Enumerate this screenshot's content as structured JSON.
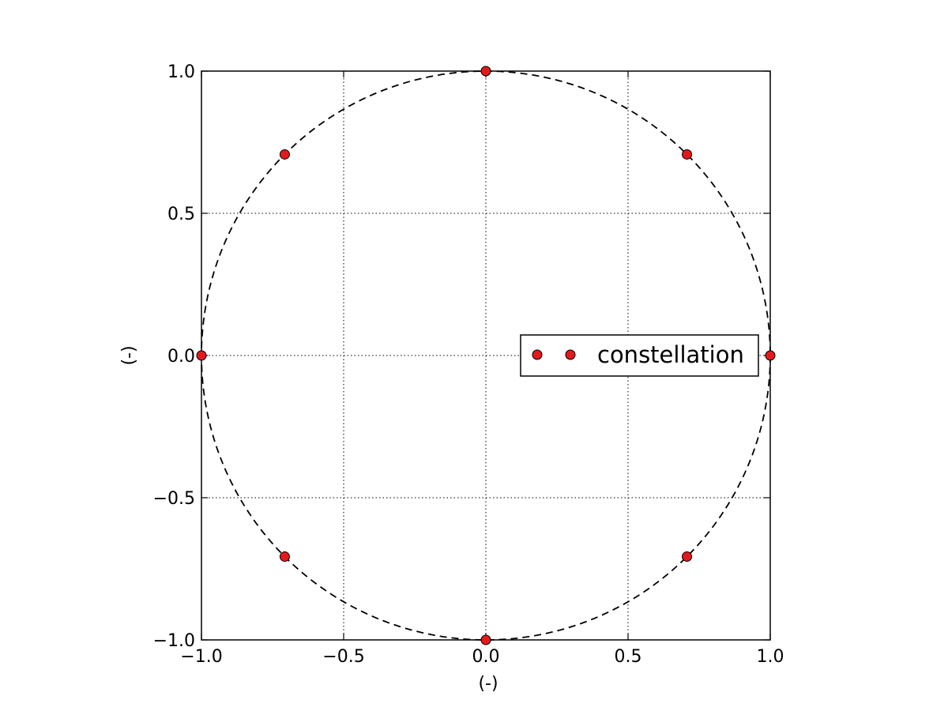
{
  "chart_data": {
    "type": "scatter",
    "title": "",
    "xlabel": "(-)",
    "ylabel": "(-)",
    "xlim": [
      -1.0,
      1.0
    ],
    "ylim": [
      -1.0,
      1.0
    ],
    "grid": true,
    "x_ticks": [
      -1.0,
      -0.5,
      0.0,
      0.5,
      1.0
    ],
    "y_ticks": [
      -1.0,
      -0.5,
      0.0,
      0.5,
      1.0
    ],
    "x_tick_labels": [
      "−1.0",
      "−0.5",
      "0.0",
      "0.5",
      "1.0"
    ],
    "y_tick_labels": [
      "−1.0",
      "−0.5",
      "0.0",
      "0.5",
      "1.0"
    ],
    "legend_position": "right",
    "series": [
      {
        "name": "constellation",
        "color": "#e31a1c",
        "marker": "circle",
        "x": [
          1.0,
          0.7071,
          0.0,
          -0.7071,
          -1.0,
          -0.7071,
          0.0,
          0.7071
        ],
        "y": [
          0.0,
          0.7071,
          1.0,
          0.7071,
          0.0,
          -0.7071,
          -1.0,
          -0.7071
        ]
      }
    ],
    "reference_curve": {
      "shape": "unit-circle",
      "radius": 1.0,
      "style": "dashed",
      "color": "#000000"
    }
  }
}
